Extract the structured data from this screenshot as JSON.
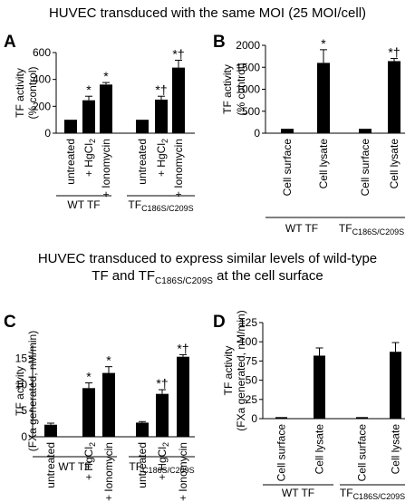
{
  "section_titles": {
    "top": "HUVEC transduced with the same MOI (25 MOI/cell)",
    "bottom_line1": "HUVEC transduced to express similar levels of wild-type",
    "bottom_line2_pre": "TF and TF",
    "bottom_line2_sub": "C186S/C209S",
    "bottom_line2_post": " at the cell surface"
  },
  "chart_data": [
    {
      "id": "A",
      "type": "bar",
      "letter": "A",
      "ylabel": [
        "TF activity",
        "(% control)"
      ],
      "ylim": [
        0,
        600
      ],
      "yticks": [
        0,
        200,
        400,
        600
      ],
      "tick_labels": [
        "0",
        "200",
        "400",
        "600"
      ],
      "bars": [
        {
          "label": "untreated",
          "value": 100,
          "error": 0,
          "marker": ""
        },
        {
          "label": "+ HgCl",
          "label_sub": "2",
          "value": 245,
          "error": 30,
          "marker": "*"
        },
        {
          "label": "+ Ionomycin",
          "value": 362,
          "error": 15,
          "marker": "*"
        },
        {
          "label": "untreated",
          "value": 100,
          "error": 0,
          "marker": ""
        },
        {
          "label": "+ HgCl",
          "label_sub": "2",
          "value": 250,
          "error": 25,
          "marker": "*†"
        },
        {
          "label": "+ Ionomycin",
          "value": 488,
          "error": 55,
          "marker": "*†"
        }
      ],
      "groups": [
        {
          "label": "WT TF",
          "sub": ""
        },
        {
          "label": "TF",
          "sub": "C186S/C209S"
        }
      ]
    },
    {
      "id": "B",
      "type": "bar",
      "letter": "B",
      "ylabel": [
        "TF activity",
        "(% control)"
      ],
      "ylim": [
        0,
        2000
      ],
      "yticks": [
        0,
        500,
        1000,
        1500,
        2000
      ],
      "tick_labels": [
        "0",
        "500",
        "1000",
        "1500",
        "2000"
      ],
      "bars": [
        {
          "label": "Cell surface",
          "value": 100,
          "error": 0,
          "marker": ""
        },
        {
          "label": "Cell lysate",
          "value": 1600,
          "error": 300,
          "marker": "*"
        },
        {
          "label": "Cell surface",
          "value": 100,
          "error": 0,
          "marker": ""
        },
        {
          "label": "Cell lysate",
          "value": 1640,
          "error": 60,
          "marker": "*†"
        }
      ],
      "groups": [
        {
          "label": "WT TF",
          "sub": ""
        },
        {
          "label": "TF",
          "sub": "C186S/C209S"
        }
      ]
    },
    {
      "id": "C",
      "type": "bar",
      "letter": "C",
      "ylabel": [
        "TF activity",
        "(FXa generated, nM/min)"
      ],
      "ylim": [
        0,
        17.5
      ],
      "yticks": [
        0,
        5,
        10,
        15
      ],
      "tick_labels": [
        "0",
        "5",
        "10",
        "15"
      ],
      "bars": [
        {
          "label": "untreated",
          "value": 2.3,
          "error": 0.3,
          "marker": ""
        },
        {
          "label": "+ HgCl",
          "label_sub": "2",
          "value": 9.3,
          "error": 1.0,
          "marker": "*"
        },
        {
          "label": "+ Ionomycin",
          "value": 12.2,
          "error": 1.2,
          "marker": "*"
        },
        {
          "label": "untreated",
          "value": 2.7,
          "error": 0.2,
          "marker": ""
        },
        {
          "label": "+ HgCl",
          "label_sub": "2",
          "value": 8.2,
          "error": 0.8,
          "marker": "*†"
        },
        {
          "label": "+ Ionomycin",
          "value": 15.3,
          "error": 0.4,
          "marker": "*†"
        }
      ],
      "groups": [
        {
          "label": "WT TF",
          "sub": ""
        },
        {
          "label": "TF",
          "sub": "C186S/C209S"
        }
      ]
    },
    {
      "id": "D",
      "type": "bar",
      "letter": "D",
      "ylabel": [
        "TF activity",
        "(FXa generated, nM/min)"
      ],
      "ylim": [
        0,
        125
      ],
      "yticks": [
        0,
        25,
        50,
        75,
        100,
        125
      ],
      "tick_labels": [
        "0",
        "25",
        "50",
        "75",
        "100",
        "125"
      ],
      "bars": [
        {
          "label": "Cell surface",
          "value": 2,
          "error": 0,
          "marker": ""
        },
        {
          "label": "Cell lysate",
          "value": 82,
          "error": 10,
          "marker": ""
        },
        {
          "label": "Cell surface",
          "value": 2,
          "error": 0,
          "marker": ""
        },
        {
          "label": "Cell lysate",
          "value": 87,
          "error": 12,
          "marker": ""
        }
      ],
      "groups": [
        {
          "label": "WT TF",
          "sub": ""
        },
        {
          "label": "TF",
          "sub": "C186S/C209S"
        }
      ]
    }
  ]
}
